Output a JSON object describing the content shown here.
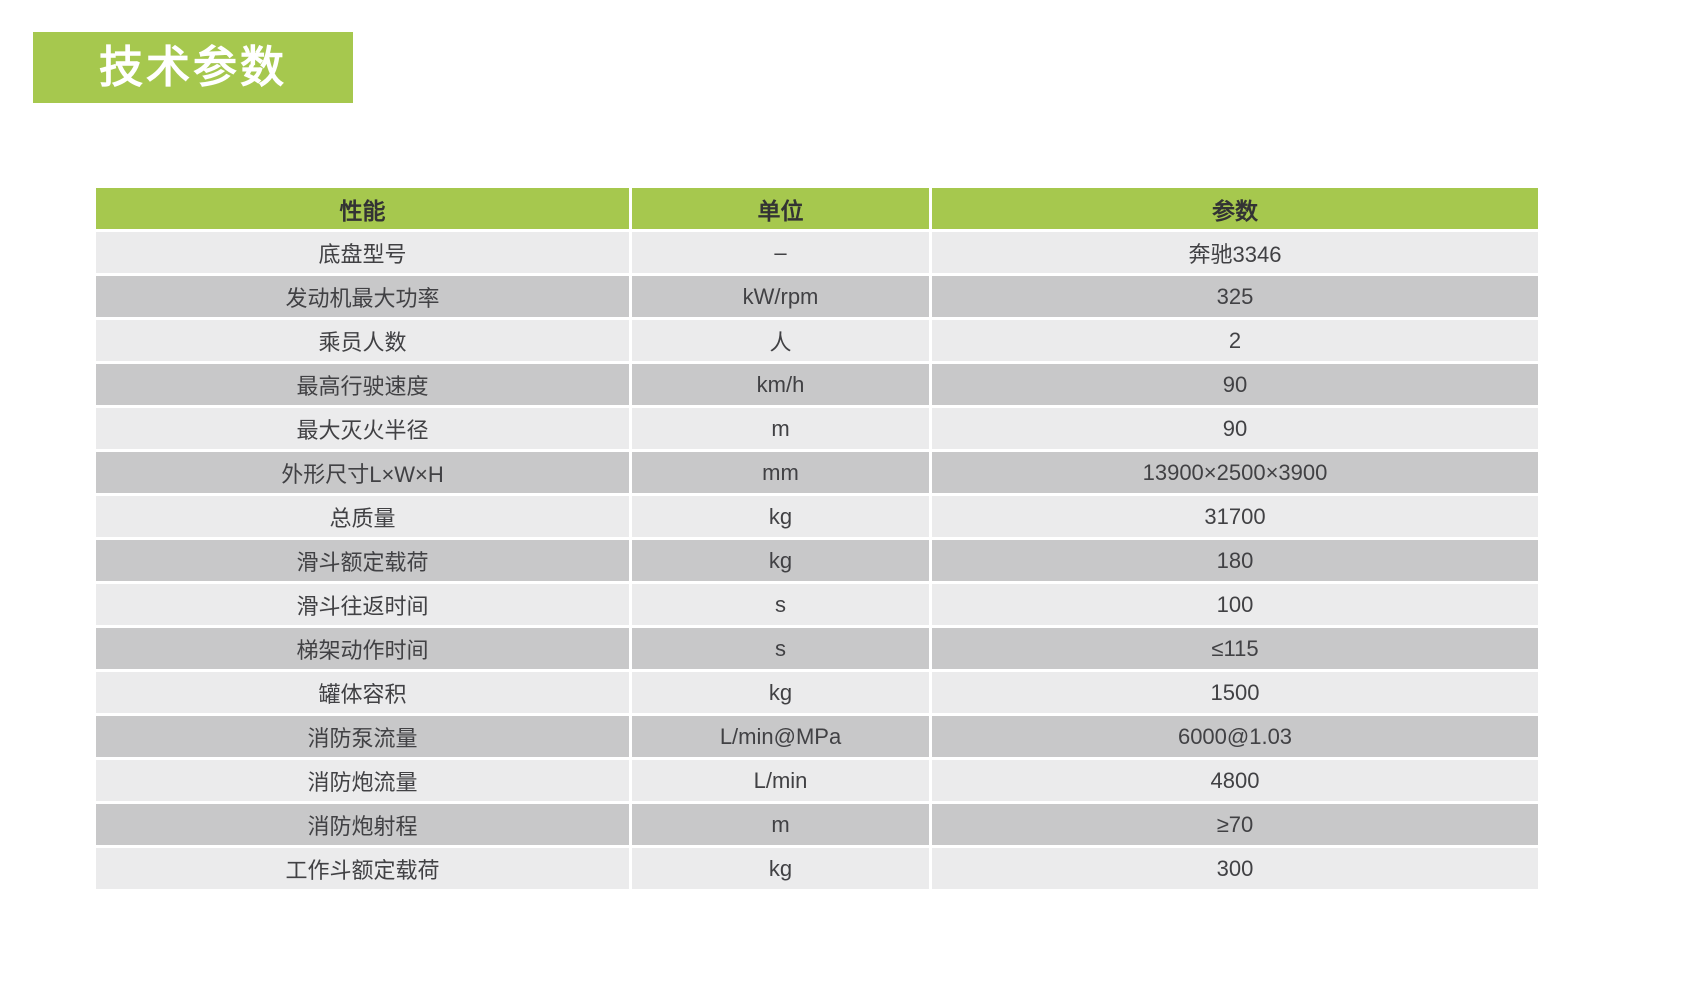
{
  "section_title": "技术参数",
  "table": {
    "headers": [
      "性能",
      "单位",
      "参数"
    ],
    "rows": [
      {
        "name": "底盘型号",
        "unit": "–",
        "value": "奔驰3346"
      },
      {
        "name": "发动机最大功率",
        "unit": "kW/rpm",
        "value": "325"
      },
      {
        "name": "乘员人数",
        "unit": "人",
        "value": "2"
      },
      {
        "name": "最高行驶速度",
        "unit": "km/h",
        "value": "90"
      },
      {
        "name": "最大灭火半径",
        "unit": "m",
        "value": "90"
      },
      {
        "name": "外形尺寸L×W×H",
        "unit": "mm",
        "value": "13900×2500×3900"
      },
      {
        "name": "总质量",
        "unit": "kg",
        "value": "31700"
      },
      {
        "name": "滑斗额定载荷",
        "unit": "kg",
        "value": "180"
      },
      {
        "name": "滑斗往返时间",
        "unit": "s",
        "value": "100"
      },
      {
        "name": "梯架动作时间",
        "unit": "s",
        "value": "≤115"
      },
      {
        "name": "罐体容积",
        "unit": "kg",
        "value": "1500"
      },
      {
        "name": "消防泵流量",
        "unit": "L/min@MPa",
        "value": "6000@1.03"
      },
      {
        "name": "消防炮流量",
        "unit": "L/min",
        "value": "4800"
      },
      {
        "name": "消防炮射程",
        "unit": "m",
        "value": "≥70"
      },
      {
        "name": "工作斗额定载荷",
        "unit": "kg",
        "value": "300"
      }
    ]
  },
  "colors": {
    "accent_green": "#a6c84e",
    "row_light": "#ebebec",
    "row_dark": "#c8c8c9"
  }
}
